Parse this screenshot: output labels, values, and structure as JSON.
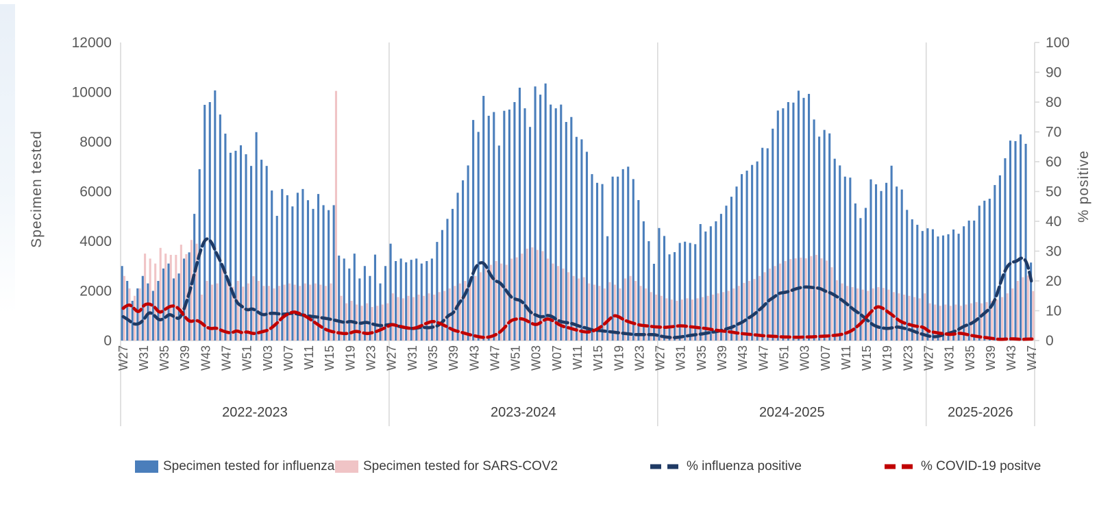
{
  "chart_data": {
    "type": "combo_bar_line",
    "left_axis": {
      "title": "Specimen tested",
      "min": 0,
      "max": 12000,
      "ticks": [
        0,
        2000,
        4000,
        6000,
        8000,
        10000,
        12000
      ]
    },
    "right_axis": {
      "title": "% positive",
      "min": 0,
      "max": 100,
      "ticks": [
        0,
        10,
        20,
        30,
        40,
        50,
        60,
        70,
        80,
        90,
        100
      ]
    },
    "seasons": {
      "labels": [
        "2022-2023",
        "2023-2024",
        "2024-2025",
        "2025-2026"
      ],
      "weeks_per_season": [
        52,
        52,
        52,
        21
      ],
      "week_tick_interval": 4,
      "week_tick_labels_full": [
        "W27",
        "W31",
        "W35",
        "W39",
        "W43",
        "W47",
        "W51",
        "W03",
        "W07",
        "W11",
        "W15",
        "W19",
        "W23"
      ],
      "week_tick_labels_last": [
        "W27",
        "W31",
        "W35",
        "W39",
        "W43",
        "W47"
      ]
    },
    "grid": "off",
    "legend_position": "bottom",
    "series": [
      {
        "name": "Specimen tested for influenza",
        "type": "bar",
        "axis": "left",
        "color": "#4a7ebb",
        "values": [
          3000,
          2400,
          1600,
          2100,
          2600,
          2300,
          2000,
          2400,
          2900,
          3100,
          2500,
          2700,
          3300,
          3550,
          5100,
          6900,
          9490,
          9600,
          10070,
          9100,
          8330,
          7560,
          7640,
          7860,
          7500,
          7030,
          8390,
          7280,
          7030,
          6040,
          5020,
          6100,
          5850,
          5400,
          5950,
          6100,
          5650,
          5300,
          5900,
          5450,
          5250,
          5450,
          3420,
          3300,
          2900,
          3500,
          2500,
          3000,
          2600,
          3460,
          2300,
          3000,
          3900,
          3200,
          3300,
          3150,
          3250,
          3300,
          3100,
          3200,
          3300,
          3970,
          4450,
          4900,
          5300,
          5950,
          6450,
          7050,
          8880,
          8400,
          9850,
          9050,
          9200,
          7850,
          9250,
          9300,
          9600,
          10180,
          9350,
          8600,
          10230,
          9900,
          10350,
          9500,
          9350,
          9500,
          8800,
          9000,
          8200,
          8100,
          7600,
          6700,
          6350,
          6300,
          4200,
          6600,
          6600,
          6900,
          7000,
          6500,
          5655,
          4800,
          4000,
          3090,
          4530,
          4210,
          3470,
          3560,
          3930,
          3980,
          3930,
          3880,
          4690,
          4390,
          4600,
          4800,
          5100,
          5430,
          5790,
          6200,
          6700,
          6840,
          7070,
          7210,
          7760,
          7740,
          8530,
          9260,
          9350,
          9600,
          9580,
          10060,
          9770,
          9930,
          8900,
          8210,
          8480,
          8340,
          7320,
          7050,
          6600,
          6560,
          5520,
          4930,
          5340,
          6490,
          6290,
          6020,
          6350,
          7040,
          6200,
          6080,
          5260,
          4880,
          4660,
          4410,
          4520,
          4480,
          4190,
          4230,
          4280,
          4470,
          4300,
          4600,
          4830,
          4830,
          5430,
          5630,
          5710,
          6260,
          6650,
          7340,
          8050,
          8030,
          8300,
          7920,
          3140
        ]
      },
      {
        "name": "Specimen tested for SARS-COV2",
        "type": "bar",
        "axis": "left",
        "color": "#f0c4c6",
        "values": [
          2600,
          2100,
          1800,
          2100,
          3500,
          3300,
          3100,
          3730,
          3500,
          3450,
          3450,
          3860,
          3480,
          4050,
          3900,
          1850,
          2400,
          2250,
          2300,
          2900,
          2450,
          2170,
          2400,
          2170,
          2300,
          2590,
          2400,
          2200,
          2200,
          2100,
          2200,
          2250,
          2300,
          2250,
          2200,
          2300,
          2250,
          2300,
          2250,
          2200,
          2300,
          10050,
          1800,
          1500,
          1600,
          1450,
          1400,
          1500,
          1350,
          1400,
          1450,
          1500,
          1900,
          1750,
          1700,
          1800,
          1750,
          1850,
          1800,
          1900,
          1850,
          1950,
          2000,
          2100,
          2200,
          2300,
          2400,
          2500,
          2600,
          2750,
          2900,
          3050,
          3200,
          3100,
          3050,
          3300,
          3350,
          3500,
          3700,
          3750,
          3650,
          3600,
          3300,
          3100,
          3000,
          2900,
          2750,
          2600,
          2500,
          2550,
          2300,
          2250,
          2200,
          2100,
          2350,
          2250,
          2100,
          2500,
          2600,
          2400,
          2200,
          2100,
          1950,
          1850,
          1800,
          1700,
          1650,
          1600,
          1650,
          1700,
          1650,
          1700,
          1750,
          1800,
          1850,
          1900,
          1950,
          2000,
          2100,
          2200,
          2320,
          2400,
          2480,
          2600,
          2750,
          2900,
          3000,
          3100,
          3200,
          3280,
          3310,
          3340,
          3310,
          3400,
          3450,
          3310,
          3220,
          2950,
          2430,
          2300,
          2200,
          2150,
          2100,
          2050,
          2000,
          2100,
          2150,
          2120,
          2050,
          1950,
          1900,
          1850,
          1800,
          1750,
          1700,
          1900,
          1500,
          1450,
          1400,
          1450,
          1400,
          1450,
          1400,
          1450,
          1500,
          1550,
          1500,
          1550,
          1600,
          1650,
          1750,
          1900,
          2100,
          2400,
          2550,
          2620,
          1990
        ]
      },
      {
        "name": "% influenza positive",
        "type": "line",
        "axis": "right",
        "color": "#1f3a64",
        "dashed": true,
        "values": [
          8,
          7,
          5.5,
          5.5,
          7,
          9.7,
          8.5,
          6.7,
          7.5,
          9,
          7.8,
          7.2,
          11.5,
          17,
          24,
          30.5,
          34.5,
          33.5,
          29.5,
          26,
          21.6,
          17,
          12.6,
          11.5,
          10.1,
          10.8,
          9.7,
          8.5,
          9,
          9.2,
          9,
          8.8,
          9,
          9.2,
          8.8,
          8.5,
          8.2,
          8,
          7.8,
          7.5,
          7.2,
          6.8,
          6.4,
          6,
          6.5,
          6,
          5.7,
          6.2,
          5.7,
          5.2,
          5,
          5.2,
          5.5,
          5,
          4.5,
          4.2,
          4,
          4.2,
          4.5,
          4.2,
          4.5,
          5,
          6.5,
          8.5,
          9.2,
          12.5,
          14.7,
          18.5,
          24,
          26.2,
          26,
          22.3,
          20,
          19.5,
          17.2,
          14.7,
          13.8,
          13.5,
          11.5,
          9.2,
          8.5,
          7.8,
          8.5,
          8.2,
          6.9,
          6.2,
          6,
          5.7,
          5,
          4.5,
          4,
          3.5,
          3.4,
          3.2,
          3,
          2.8,
          2.6,
          2.4,
          2.2,
          2,
          2,
          2,
          2,
          2,
          1.5,
          1.2,
          1,
          1,
          1.2,
          1.5,
          1.8,
          2,
          2.2,
          2.5,
          2.8,
          3,
          3.5,
          4,
          4.5,
          5.5,
          6.2,
          7.5,
          8.5,
          10,
          11.5,
          13.5,
          14.5,
          15.9,
          16.1,
          16.5,
          17.2,
          17.7,
          18,
          17.9,
          17.7,
          17.5,
          16.5,
          16,
          15,
          13.8,
          12.5,
          11,
          9.7,
          8.5,
          7,
          5.5,
          4.6,
          4.2,
          4,
          4.3,
          4.6,
          4.2,
          3.8,
          3.2,
          2.5,
          2,
          1.5,
          1.2,
          1.5,
          2,
          2.5,
          3,
          4,
          5,
          5.5,
          6.5,
          8,
          9.5,
          11,
          14.3,
          20,
          24.5,
          26.3,
          26.5,
          28,
          26.5,
          19
        ]
      },
      {
        "name": "% COVID-19 positve",
        "type": "line",
        "axis": "right",
        "color": "#c00000",
        "dashed": true,
        "values": [
          10.8,
          12.4,
          11,
          9.2,
          12,
          12.4,
          11.5,
          9.2,
          10.3,
          11.5,
          11.7,
          10.3,
          7.8,
          6.2,
          6.9,
          6.2,
          4.6,
          3.9,
          4.3,
          3.4,
          2.8,
          2.5,
          3.4,
          2.5,
          3,
          2.3,
          2.5,
          3,
          3.4,
          4.6,
          6.2,
          8,
          9,
          9.7,
          9.2,
          8.5,
          7.4,
          6.2,
          5,
          3.9,
          3.2,
          2.8,
          2.5,
          2.3,
          2.5,
          3.2,
          2.8,
          2.3,
          2.5,
          3,
          3.7,
          4.5,
          5.5,
          5,
          4.6,
          4.2,
          4,
          4.4,
          5.2,
          6,
          6.5,
          6,
          5.2,
          4.4,
          3.4,
          3,
          2.5,
          2,
          1.6,
          1.2,
          1,
          1.2,
          1.8,
          2.8,
          4.6,
          6.7,
          7.2,
          7.4,
          6.9,
          5.8,
          5.2,
          6.2,
          7.4,
          6.9,
          5.8,
          4.8,
          4.4,
          3.9,
          3.4,
          3,
          2.8,
          3.2,
          4,
          5.2,
          6.9,
          8.5,
          8,
          6.9,
          6.2,
          5.7,
          5.2,
          5,
          4.8,
          4.6,
          4.5,
          4.4,
          4.6,
          4.8,
          5,
          4.8,
          4.6,
          4.4,
          4.2,
          4,
          3.7,
          3.4,
          3.2,
          3,
          2.8,
          2.5,
          2.3,
          2.1,
          2,
          1.8,
          1.6,
          1.5,
          1.4,
          1.3,
          1.2,
          1.2,
          1.1,
          1.1,
          1.2,
          1.2,
          1.3,
          1.4,
          1.5,
          1.6,
          1.8,
          2,
          2.5,
          3.2,
          4.5,
          6,
          8,
          10,
          11.5,
          11,
          9.7,
          8.5,
          7,
          6,
          5.5,
          5,
          4.7,
          4.5,
          3,
          2.8,
          2.5,
          2.3,
          2,
          2.2,
          2.5,
          2.2,
          1.8,
          1.5,
          1.2,
          1,
          0.8,
          0.5,
          0.4,
          0.5,
          0.6,
          0.5,
          0.4,
          0.5,
          0.5
        ]
      }
    ]
  },
  "legend": {
    "items": [
      {
        "label": "Specimen tested for influenza",
        "swatch": "filled-bar",
        "color": "#4a7ebb"
      },
      {
        "label": "Specimen tested for SARS-COV2",
        "swatch": "filled-bar",
        "color": "#f0c4c6"
      },
      {
        "label": "% influenza positive",
        "swatch": "dashed-line",
        "color": "#1f3a64"
      },
      {
        "label": "% COVID-19 positve",
        "swatch": "dashed-line",
        "color": "#c00000"
      }
    ]
  }
}
